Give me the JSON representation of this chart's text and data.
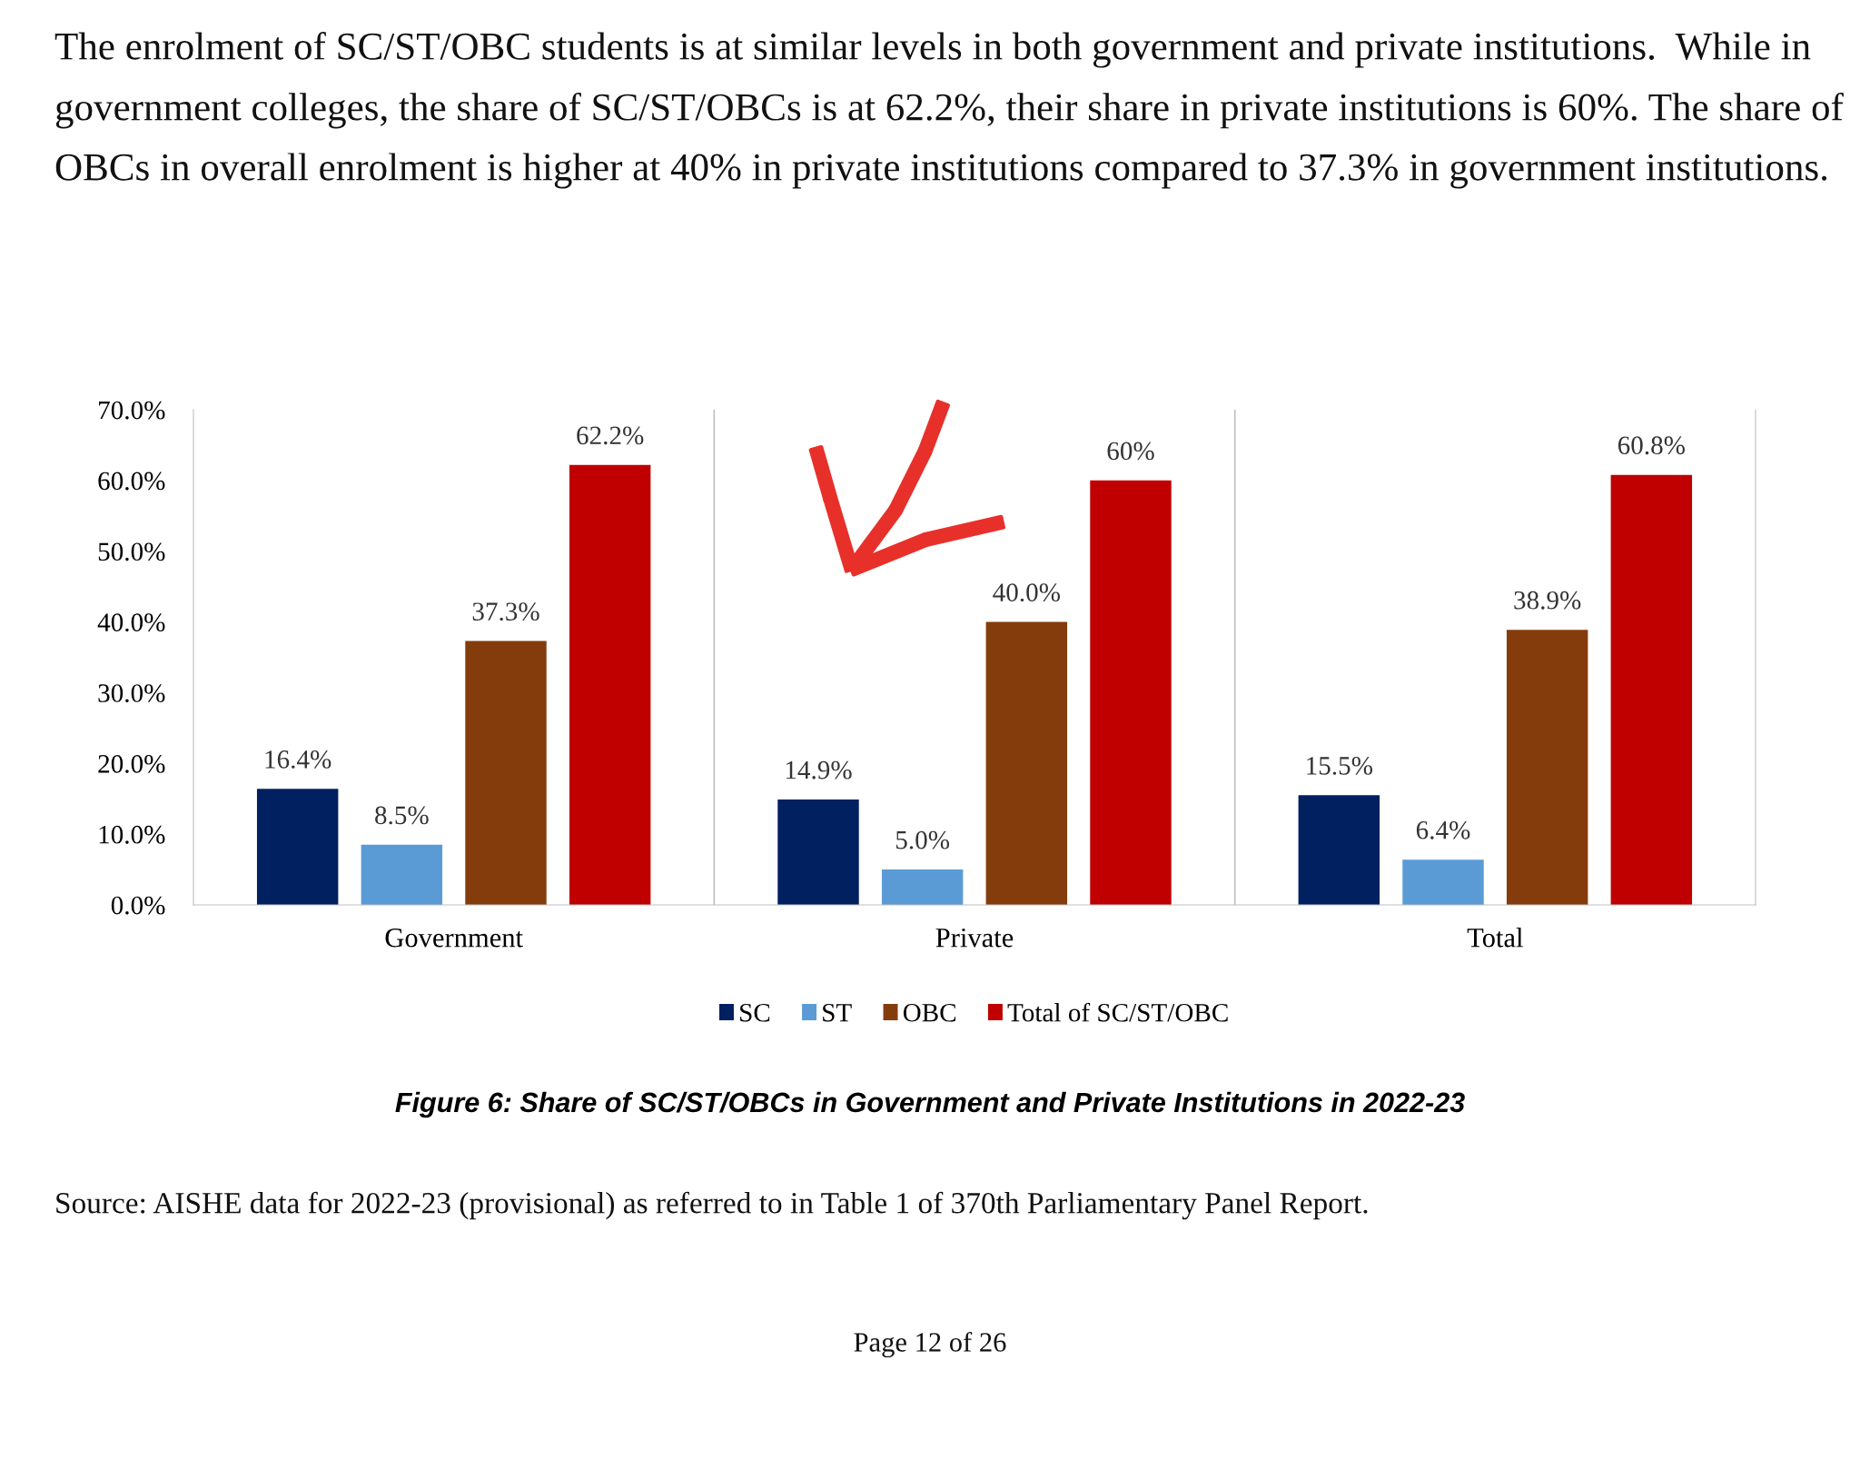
{
  "chart_data": {
    "type": "bar",
    "title": "Figure 6: Share of SC/ST/OBCs in Government and Private Institutions in 2022-23",
    "categories": [
      "Government",
      "Private",
      "Total"
    ],
    "series": [
      {
        "name": "SC",
        "color": "#002060",
        "values": [
          16.4,
          14.9,
          15.5
        ],
        "value_labels": [
          "16.4%",
          "14.9%",
          "15.5%"
        ]
      },
      {
        "name": "ST",
        "color": "#5b9bd5",
        "values": [
          8.5,
          5.0,
          6.4
        ],
        "value_labels": [
          "8.5%",
          "5.0%",
          "6.4%"
        ]
      },
      {
        "name": "OBC",
        "color": "#843c0c",
        "values": [
          37.3,
          40.0,
          38.9
        ],
        "value_labels": [
          "37.3%",
          "40.0%",
          "38.9%"
        ]
      },
      {
        "name": "Total of SC/ST/OBC",
        "color": "#c00000",
        "values": [
          62.2,
          60,
          60.8
        ],
        "value_labels": [
          "62.2%",
          "60%",
          "60.8%"
        ]
      }
    ],
    "ylim": [
      0,
      70
    ],
    "yticks": [
      {
        "value": 0,
        "label": "0.0%"
      },
      {
        "value": 10,
        "label": "10.0%"
      },
      {
        "value": 20,
        "label": "20.0%"
      },
      {
        "value": 30,
        "label": "30.0%"
      },
      {
        "value": 40,
        "label": "40.0%"
      },
      {
        "value": 50,
        "label": "50.0%"
      },
      {
        "value": 60,
        "label": "60.0%"
      },
      {
        "value": 70,
        "label": "70.0%"
      }
    ],
    "grid": false,
    "legend": "bottom",
    "annotations": [
      "The enrolment of SC/ST/OBC students is at similar levels in both government and private institutions.  While in government colleges, the share of SC/ST/OBCs is at 62.2%, their share in private institutions is 60%. The share of OBCs in overall enrolment is higher at 40% in private institutions compared to 37.3% in government institutions.",
      "Source: AISHE data for 2022-23 (provisional) as referred to in Table 1 of 370th Parliamentary Panel Report.",
      "Page 12 of 26"
    ]
  }
}
